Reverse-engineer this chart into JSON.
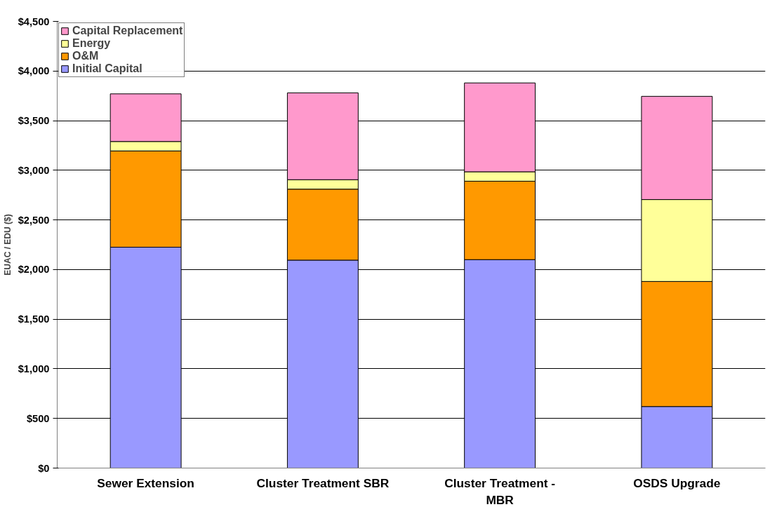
{
  "chart_data": {
    "type": "bar",
    "stacked": true,
    "ylabel": "EUAC / EDU ($)",
    "categories": [
      "Sewer Extension",
      "Cluster Treatment SBR",
      "Cluster Treatment - MBR",
      "OSDS Upgrade"
    ],
    "series": [
      {
        "name": "Initial Capital",
        "color": "#9999ff",
        "values": [
          2225,
          2095,
          2100,
          620
        ]
      },
      {
        "name": "O&M",
        "color": "#ff9900",
        "values": [
          970,
          715,
          790,
          1260
        ]
      },
      {
        "name": "Energy",
        "color": "#ffff99",
        "values": [
          95,
          95,
          95,
          825
        ]
      },
      {
        "name": "Capital Replacement",
        "color": "#ff99cc",
        "values": [
          480,
          875,
          895,
          1040
        ]
      }
    ],
    "ylim": [
      0,
      4500
    ],
    "yticks": [
      {
        "value": 0,
        "label": "$0"
      },
      {
        "value": 500,
        "label": "$500"
      },
      {
        "value": 1000,
        "label": "$1,000"
      },
      {
        "value": 1500,
        "label": "$1,500"
      },
      {
        "value": 2000,
        "label": "$2,000"
      },
      {
        "value": 2500,
        "label": "$2,500"
      },
      {
        "value": 3000,
        "label": "$3,000"
      },
      {
        "value": 3500,
        "label": "$3,500"
      },
      {
        "value": 4000,
        "label": "$4,000"
      },
      {
        "value": 4500,
        "label": "$4,500"
      }
    ],
    "grid": "y",
    "legend": "top left"
  }
}
